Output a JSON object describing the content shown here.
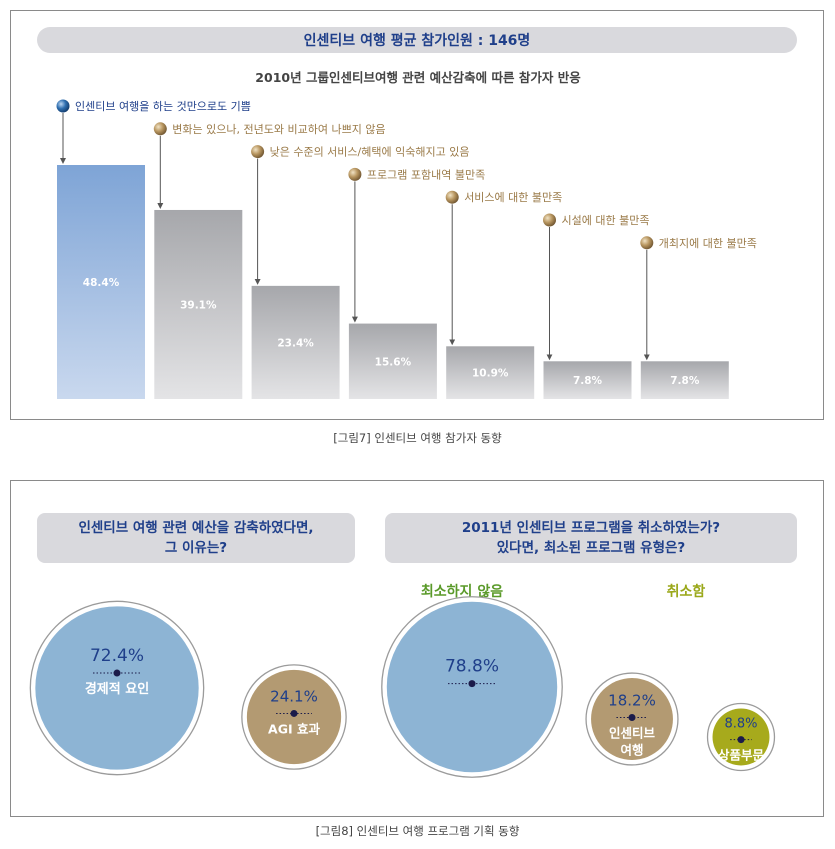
{
  "figure7": {
    "title": "인센티브 여행 평균 참가인원 : 146명",
    "subtitle": "2010년 그룹인센티브여행 관련 예산감축에 따른 참가자 반응",
    "caption": "[그림7] 인센티브 여행 참가자 동향"
  },
  "figure8": {
    "question1_line1": "인센티브 여행 관련 예산을 감축하였다면,",
    "question1_line2": "그 이유는?",
    "question2_line1": "2011년 인센티브 프로그램을 취소하였는가?",
    "question2_line2": "있다면, 최소된 프로그램 유형은?",
    "group_not_cancelled": "최소하지 않음",
    "group_cancelled": "취소함",
    "caption": "[그림8] 인센티브 여행 프로그램 기획 동향"
  },
  "colors": {
    "highlight_bar": "#7fa6d8",
    "gray_bar": "#a8a9ad",
    "blue_circle": "#8db4d4",
    "tan_circle": "#b39a72",
    "olive_circle": "#a7aa1c",
    "legend_blue_text": "#1f3f8a",
    "legend_tan_text": "#9a7a48"
  },
  "chart_data": [
    {
      "type": "bar",
      "categories": [
        "인센티브 여행을 하는 것만으로도 기쁨",
        "변화는 있으나, 전년도와 비교하여 나쁘지 않음",
        "낮은 수준의 서비스/혜택에 익숙해지고 있음",
        "프로그램 포함내역 불만족",
        "서비스에 대한 불만족",
        "시설에 대한 불만족",
        "개최지에 대한 불만족"
      ],
      "values": [
        48.4,
        39.1,
        23.4,
        15.6,
        10.9,
        7.8,
        7.8
      ],
      "value_labels": [
        "48.4%",
        "39.1%",
        "23.4%",
        "15.6%",
        "10.9%",
        "7.8%",
        "7.8%"
      ],
      "ylim": [
        0,
        50
      ]
    },
    {
      "type": "bubble",
      "items": [
        {
          "value": 72.4,
          "pct_label": "72.4%",
          "label": "경제적 요인",
          "color": "blue"
        },
        {
          "value": 24.1,
          "pct_label": "24.1%",
          "label": "AGI 효과",
          "color": "tan"
        }
      ]
    },
    {
      "type": "bubble",
      "items": [
        {
          "value": 78.8,
          "pct_label": "78.8%",
          "label": "",
          "color": "blue"
        },
        {
          "value": 18.2,
          "pct_label": "18.2%",
          "label": "인센티브\n여행",
          "color": "tan"
        },
        {
          "value": 8.8,
          "pct_label": "8.8%",
          "label": "상품부문",
          "color": "olive"
        }
      ]
    }
  ]
}
